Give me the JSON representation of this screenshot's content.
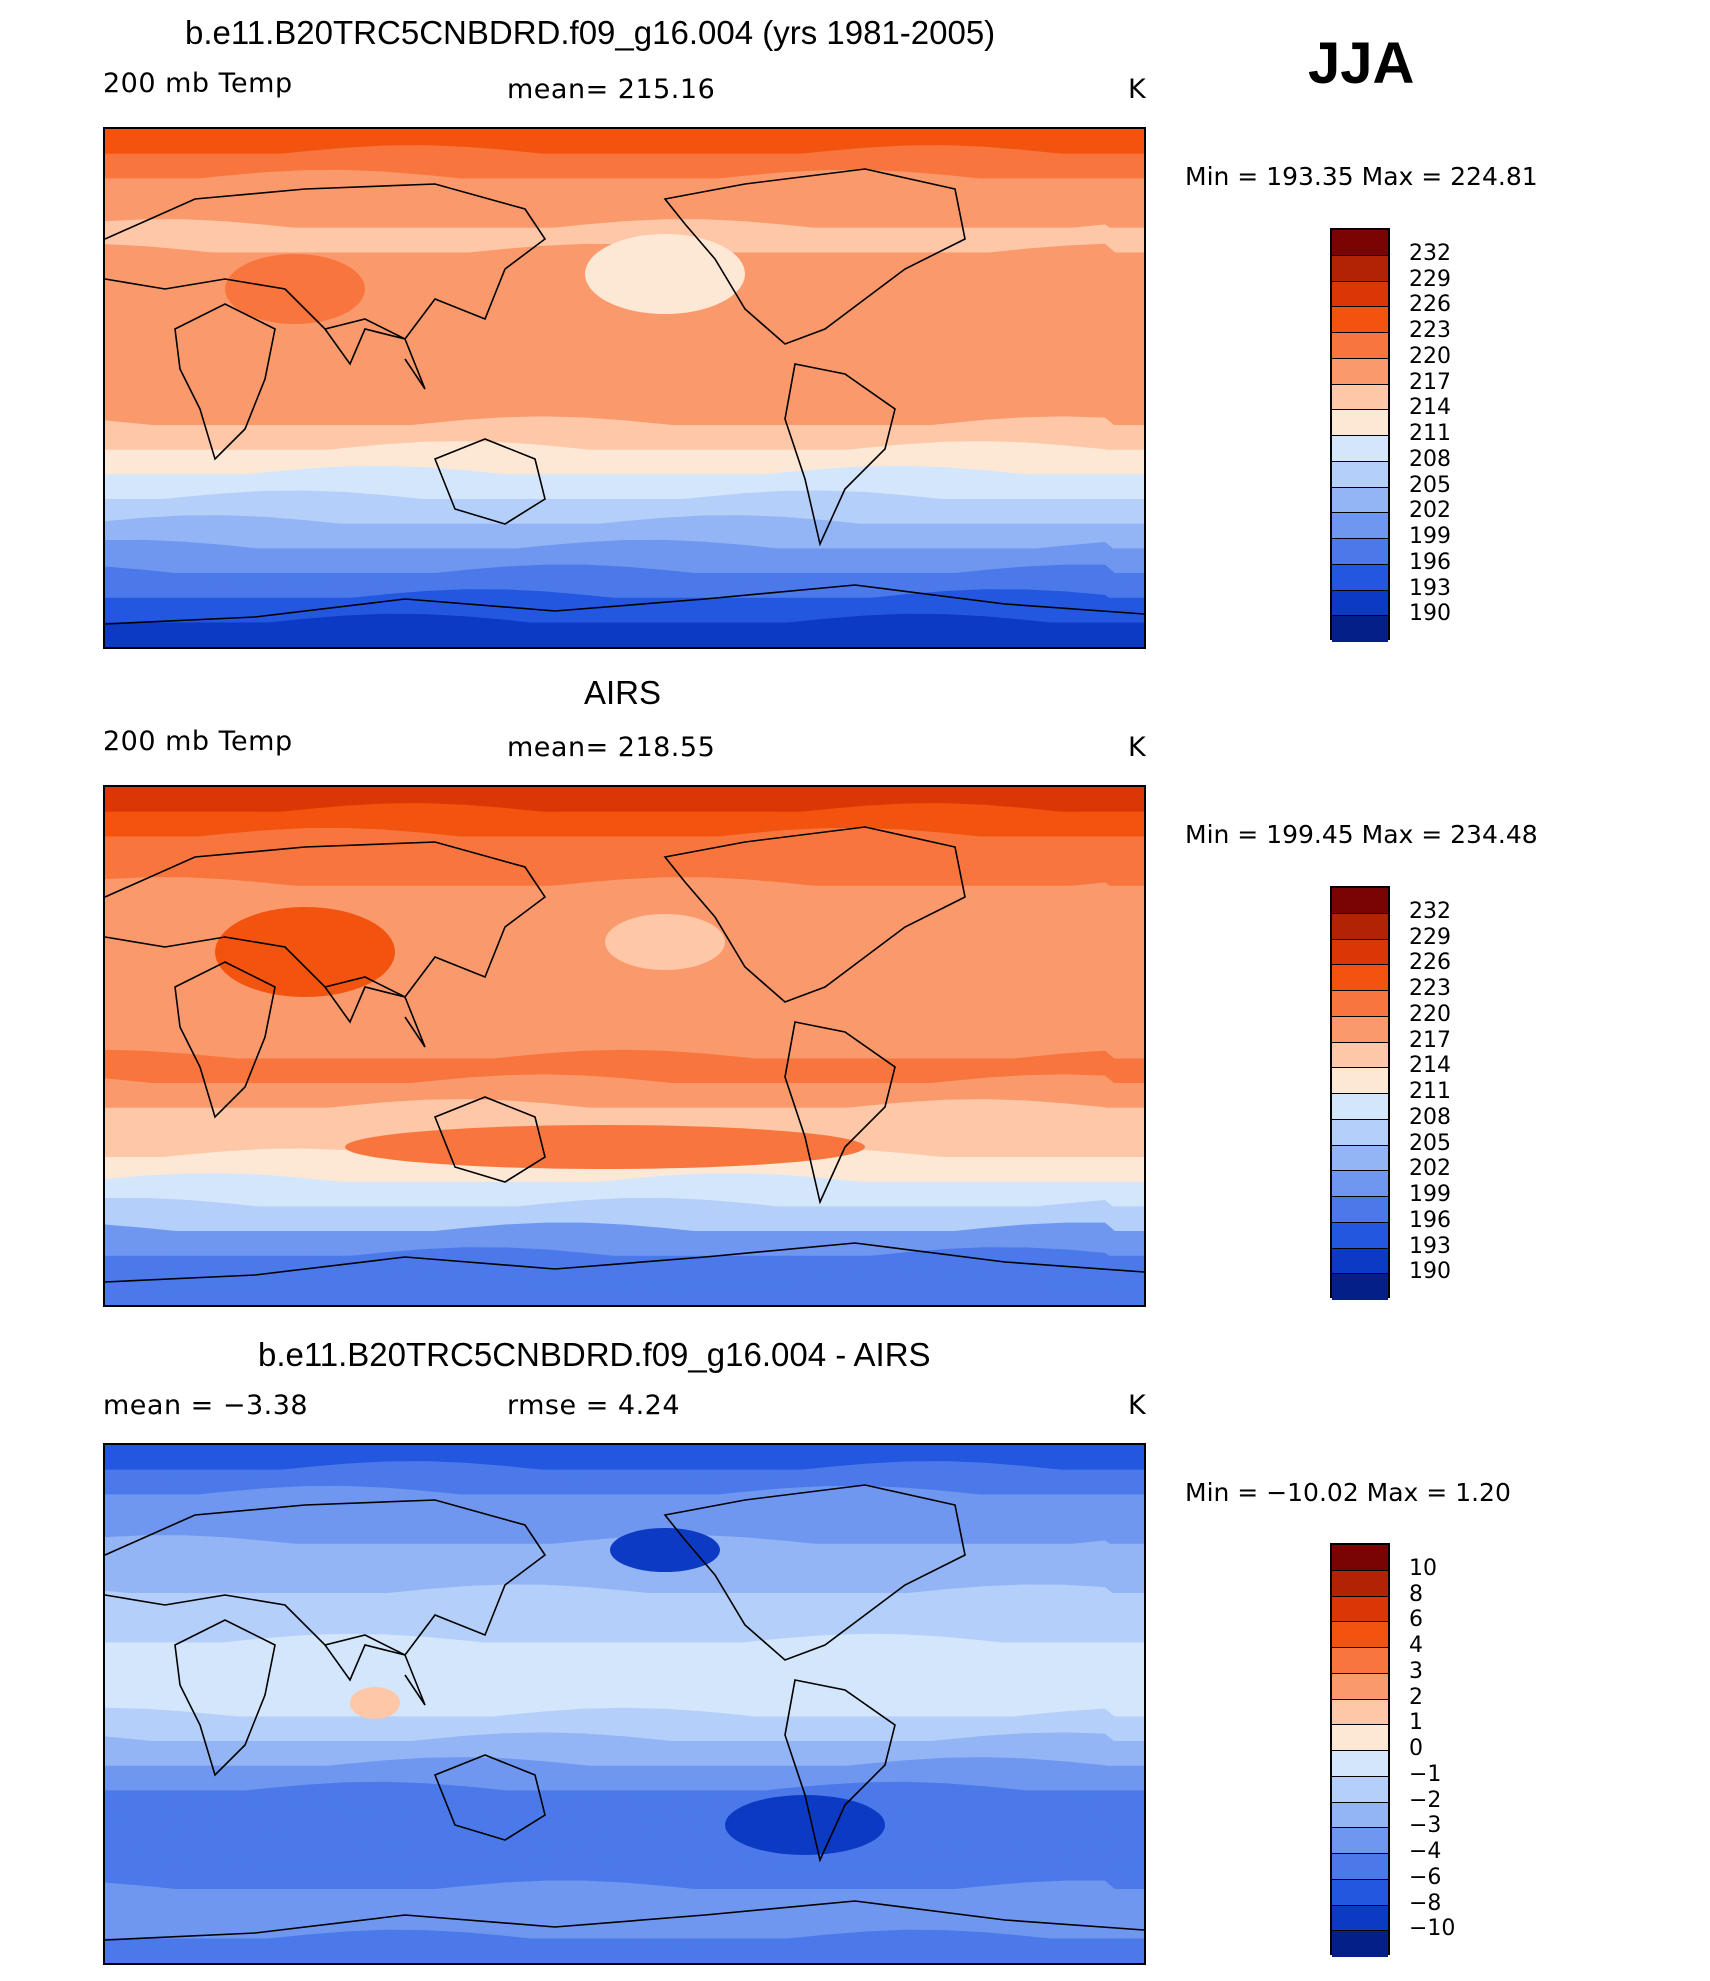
{
  "season": "JJA",
  "panels": [
    {
      "title": "b.e11.B20TRC5CNBDRD.f09_g16.004 (yrs 1981-2005)",
      "left_label": "200 mb Temp",
      "center_label": "mean=  215.16",
      "units": "K",
      "minmax": "Min  =  193.35  Max  =  224.81",
      "colorbar": [
        "232",
        "229",
        "226",
        "223",
        "220",
        "217",
        "214",
        "211",
        "208",
        "205",
        "202",
        "199",
        "196",
        "193",
        "190"
      ],
      "field": "model"
    },
    {
      "title": "AIRS",
      "left_label": "200 mb Temp",
      "center_label": "mean=  218.55",
      "units": "K",
      "minmax": "Min  =  199.45  Max  =  234.48",
      "colorbar": [
        "232",
        "229",
        "226",
        "223",
        "220",
        "217",
        "214",
        "211",
        "208",
        "205",
        "202",
        "199",
        "196",
        "193",
        "190"
      ],
      "field": "obs"
    },
    {
      "title": "b.e11.B20TRC5CNBDRD.f09_g16.004 - AIRS",
      "left_label": "mean =    −3.38",
      "center_label": "rmse  =     4.24",
      "units": "K",
      "minmax": "Min  =  −10.02  Max  =     1.20",
      "colorbar": [
        "10",
        "8",
        "6",
        "4",
        "3",
        "2",
        "1",
        "0",
        "−1",
        "−2",
        "−3",
        "−4",
        "−6",
        "−8",
        "−10"
      ],
      "field": "diff"
    }
  ],
  "colors": {
    "levels_16": [
      "#7a0403",
      "#b22306",
      "#d93806",
      "#f2530f",
      "#f8763e",
      "#fa9a6c",
      "#fdc7a8",
      "#fde8d5",
      "#d4e6fb",
      "#b4cff9",
      "#93b5f5",
      "#6f97f0",
      "#4b79ea",
      "#2457e0",
      "#0c3ac2",
      "#042088"
    ]
  }
}
